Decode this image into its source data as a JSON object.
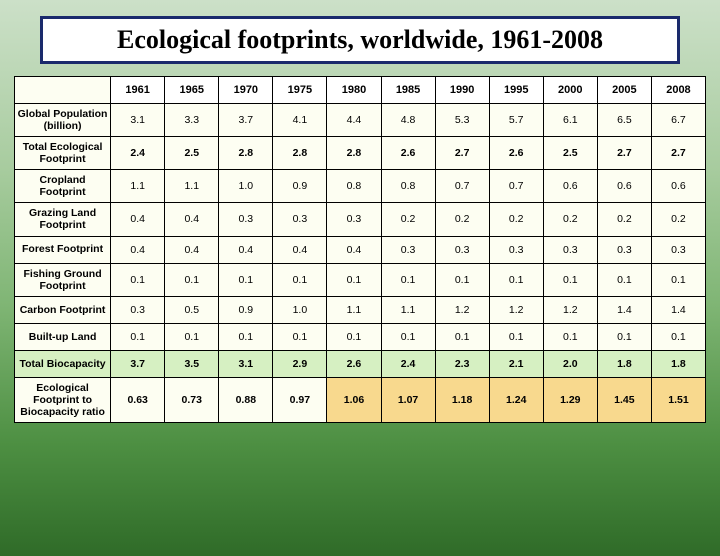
{
  "title": "Ecological footprints, worldwide, 1961-2008",
  "table": {
    "years": [
      "1961",
      "1965",
      "1970",
      "1975",
      "1980",
      "1985",
      "1990",
      "1995",
      "2000",
      "2005",
      "2008"
    ],
    "header_bg": "#ffffff",
    "corner_bg": "#fdfef2",
    "row_bg_default": "#fdfef2",
    "rows": [
      {
        "label": "Global Population (billion)",
        "values": [
          "3.1",
          "3.3",
          "3.7",
          "4.1",
          "4.4",
          "4.8",
          "5.3",
          "5.7",
          "6.1",
          "6.5",
          "6.7"
        ],
        "bg": "#fdfef2",
        "bold_values": false
      },
      {
        "label": "Total Ecological Footprint",
        "values": [
          "2.4",
          "2.5",
          "2.8",
          "2.8",
          "2.8",
          "2.6",
          "2.7",
          "2.6",
          "2.5",
          "2.7",
          "2.7"
        ],
        "bg": "#fdfef2",
        "bold_values": true
      },
      {
        "label": "Cropland Footprint",
        "values": [
          "1.1",
          "1.1",
          "1.0",
          "0.9",
          "0.8",
          "0.8",
          "0.7",
          "0.7",
          "0.6",
          "0.6",
          "0.6"
        ],
        "bg": "#fdfef2",
        "bold_values": false
      },
      {
        "label": "Grazing Land Footprint",
        "values": [
          "0.4",
          "0.4",
          "0.3",
          "0.3",
          "0.3",
          "0.2",
          "0.2",
          "0.2",
          "0.2",
          "0.2",
          "0.2"
        ],
        "bg": "#fdfef2",
        "bold_values": false
      },
      {
        "label": "Forest Footprint",
        "values": [
          "0.4",
          "0.4",
          "0.4",
          "0.4",
          "0.4",
          "0.3",
          "0.3",
          "0.3",
          "0.3",
          "0.3",
          "0.3"
        ],
        "bg": "#fdfef2",
        "bold_values": false
      },
      {
        "label": "Fishing Ground Footprint",
        "values": [
          "0.1",
          "0.1",
          "0.1",
          "0.1",
          "0.1",
          "0.1",
          "0.1",
          "0.1",
          "0.1",
          "0.1",
          "0.1"
        ],
        "bg": "#fdfef2",
        "bold_values": false
      },
      {
        "label": "Carbon Footprint",
        "values": [
          "0.3",
          "0.5",
          "0.9",
          "1.0",
          "1.1",
          "1.1",
          "1.2",
          "1.2",
          "1.2",
          "1.4",
          "1.4"
        ],
        "bg": "#fdfef2",
        "bold_values": false
      },
      {
        "label": "Built-up Land",
        "values": [
          "0.1",
          "0.1",
          "0.1",
          "0.1",
          "0.1",
          "0.1",
          "0.1",
          "0.1",
          "0.1",
          "0.1",
          "0.1"
        ],
        "bg": "#fdfef2",
        "bold_values": false
      },
      {
        "label": "Total Biocapacity",
        "values": [
          "3.7",
          "3.5",
          "3.1",
          "2.9",
          "2.6",
          "2.4",
          "2.3",
          "2.1",
          "2.0",
          "1.8",
          "1.8"
        ],
        "bg": "#d6f0c2",
        "bold_values": true
      },
      {
        "label": "Ecological Footprint to Biocapacity ratio",
        "values": [
          "0.63",
          "0.73",
          "0.88",
          "0.97",
          "1.06",
          "1.07",
          "1.18",
          "1.24",
          "1.29",
          "1.45",
          "1.51"
        ],
        "bg_per_cell": [
          "#fdfef2",
          "#fdfef2",
          "#fdfef2",
          "#fdfef2",
          "#f8d98e",
          "#f8d98e",
          "#f8d98e",
          "#f8d98e",
          "#f8d98e",
          "#f8d98e",
          "#f8d98e"
        ],
        "label_bg": "#fdfef2",
        "bold_values": true
      }
    ]
  }
}
